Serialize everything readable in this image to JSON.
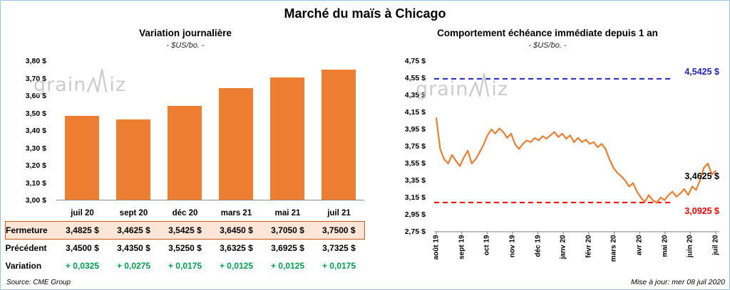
{
  "page": {
    "title": "Marché du maïs à Chicago",
    "watermark": {
      "prefix": "grain",
      "suffix": "iz"
    }
  },
  "left": {
    "title": "Variation journalière",
    "subtitle": "- $US/bo. -",
    "source": "Source: CME Group",
    "table": {
      "rows": [
        {
          "label": "Fermeture",
          "values": [
            "3,4825 $",
            "3,4625 $",
            "3,5425 $",
            "3,6450 $",
            "3,7050 $",
            "3,7500 $"
          ]
        },
        {
          "label": "Précédent",
          "values": [
            "3,4500 $",
            "3,4350 $",
            "3,5250 $",
            "3,6325 $",
            "3,6925 $",
            "3,7325 $"
          ]
        },
        {
          "label": "Variation",
          "values": [
            "+ 0,0325",
            "+ 0,0275",
            "+ 0,0175",
            "+ 0,0125",
            "+ 0,0125",
            "+ 0,0175"
          ]
        }
      ]
    }
  },
  "right": {
    "title": "Comportement échéance immédiate depuis 1 an",
    "subtitle": "- $US/bo. -",
    "updated": "Mise à jour: mer 08 juil 2020"
  },
  "colors": {
    "orange": "#ED7D31",
    "blue": "#2323BE",
    "red": "#FF0000",
    "green": "#00A04B",
    "fermeture_bg": "#FBE5D6",
    "fermeture_border": "#C55A11"
  },
  "chart_data": [
    {
      "type": "bar",
      "title": "Variation journalière",
      "subtitle": "- $US/bo. -",
      "categories": [
        "juil 20",
        "sept 20",
        "déc 20",
        "mars 21",
        "mai 21",
        "juil 21"
      ],
      "values": [
        3.4825,
        3.4625,
        3.5425,
        3.645,
        3.705,
        3.75
      ],
      "ylabel": "$US/bo.",
      "ylim": [
        3.0,
        3.8
      ],
      "ytick_step": 0.1,
      "bar_color": "#ED7D31",
      "grid": false,
      "legend": "none"
    },
    {
      "type": "line",
      "title": "Comportement échéance immédiate depuis 1 an",
      "subtitle": "- $US/bo. -",
      "x_labels": [
        "août 19",
        "sept 19",
        "oct 19",
        "nov 19",
        "déc 19",
        "janv 20",
        "févr 20",
        "mars 20",
        "avr 20",
        "mai 20",
        "juin 20",
        "juil 20"
      ],
      "values": [
        4.08,
        3.72,
        3.6,
        3.55,
        3.65,
        3.58,
        3.52,
        3.62,
        3.7,
        3.55,
        3.6,
        3.68,
        3.77,
        3.88,
        3.95,
        3.9,
        3.96,
        3.92,
        3.85,
        3.9,
        3.78,
        3.72,
        3.78,
        3.82,
        3.8,
        3.85,
        3.82,
        3.87,
        3.84,
        3.88,
        3.92,
        3.86,
        3.9,
        3.84,
        3.88,
        3.8,
        3.85,
        3.8,
        3.83,
        3.78,
        3.8,
        3.74,
        3.78,
        3.72,
        3.6,
        3.5,
        3.44,
        3.4,
        3.35,
        3.28,
        3.32,
        3.22,
        3.15,
        3.1,
        3.18,
        3.12,
        3.09,
        3.15,
        3.12,
        3.18,
        3.22,
        3.16,
        3.2,
        3.25,
        3.18,
        3.28,
        3.24,
        3.35,
        3.5,
        3.55,
        3.42,
        3.4625
      ],
      "ylim": [
        2.75,
        4.75
      ],
      "ytick_step": 0.2,
      "line_color": "#ED7D31",
      "grid": false,
      "legend": "none",
      "ref_lines": [
        {
          "value": 4.5425,
          "label": "4,5425 $",
          "color": "#2323BE",
          "style": "dashed"
        },
        {
          "value": 3.0925,
          "label": "3,0925 $",
          "color": "#FF0000",
          "style": "dashed"
        }
      ],
      "last_value": 3.4625,
      "last_label": "3,4625 $"
    }
  ]
}
